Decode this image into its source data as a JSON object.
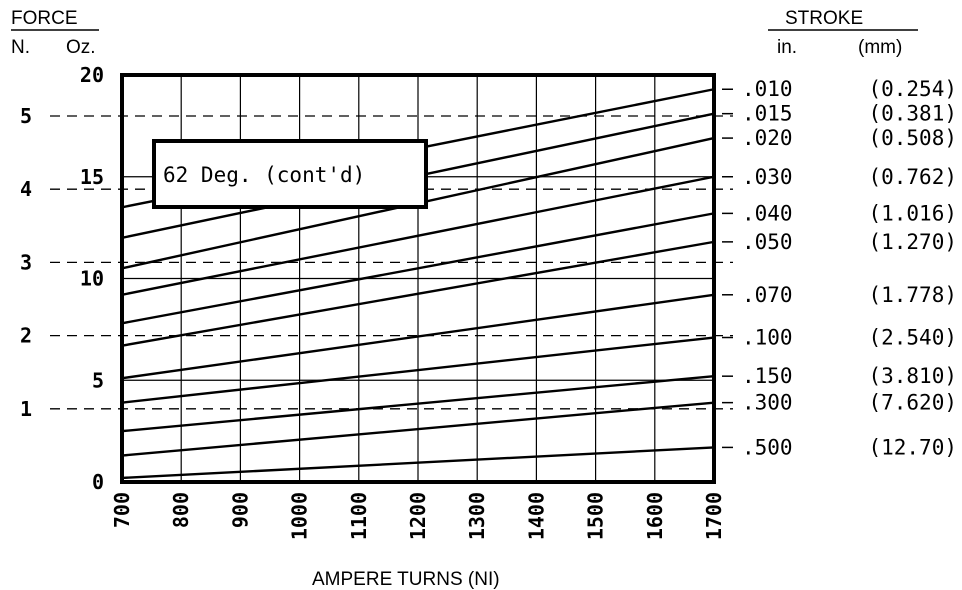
{
  "chart_data": {
    "type": "line",
    "title": "62 Deg. (cont'd)",
    "xlabel": "AMPERE TURNS (NI)",
    "x": [
      700,
      1700
    ],
    "xlim": [
      700,
      1700
    ],
    "xticks": [
      "700",
      "800",
      "900",
      "1000",
      "1100",
      "1200",
      "1300",
      "1400",
      "1500",
      "1600",
      "1700"
    ],
    "ylim_oz": [
      0,
      20
    ],
    "left_axis": {
      "header": "FORCE",
      "col_n": "N.",
      "col_oz": "Oz.",
      "n_ticks": [
        {
          "label": "5",
          "n": 5
        },
        {
          "label": "4",
          "n": 4
        },
        {
          "label": "3",
          "n": 3
        },
        {
          "label": "2",
          "n": 2
        },
        {
          "label": "1",
          "n": 1
        }
      ],
      "oz_ticks": [
        {
          "label": "20",
          "oz": 20
        },
        {
          "label": "15",
          "oz": 15
        },
        {
          "label": "10",
          "oz": 10
        },
        {
          "label": "5",
          "oz": 5
        },
        {
          "label": "0",
          "oz": 0
        }
      ]
    },
    "right_axis": {
      "header": "STROKE",
      "col_in": "in.",
      "col_mm": "(mm)"
    },
    "series": [
      {
        "name": ".010",
        "mm": "(0.254)",
        "values": [
          13.5,
          19.3
        ]
      },
      {
        "name": ".015",
        "mm": "(0.381)",
        "values": [
          12.0,
          18.1
        ]
      },
      {
        "name": ".020",
        "mm": "(0.508)",
        "values": [
          10.5,
          16.9
        ]
      },
      {
        "name": ".030",
        "mm": "(0.762)",
        "values": [
          9.2,
          15.0
        ]
      },
      {
        "name": ".040",
        "mm": "(1.016)",
        "values": [
          7.8,
          13.2
        ]
      },
      {
        "name": ".050",
        "mm": "(1.270)",
        "values": [
          6.7,
          11.8
        ]
      },
      {
        "name": ".070",
        "mm": "(1.778)",
        "values": [
          5.1,
          9.2
        ]
      },
      {
        "name": ".100",
        "mm": "(2.540)",
        "values": [
          3.9,
          7.1
        ]
      },
      {
        "name": ".150",
        "mm": "(3.810)",
        "values": [
          2.5,
          5.2
        ]
      },
      {
        "name": ".300",
        "mm": "(7.620)",
        "values": [
          1.3,
          3.9
        ]
      },
      {
        "name": ".500",
        "mm": "(12.70)",
        "values": [
          0.2,
          1.7
        ]
      }
    ]
  }
}
